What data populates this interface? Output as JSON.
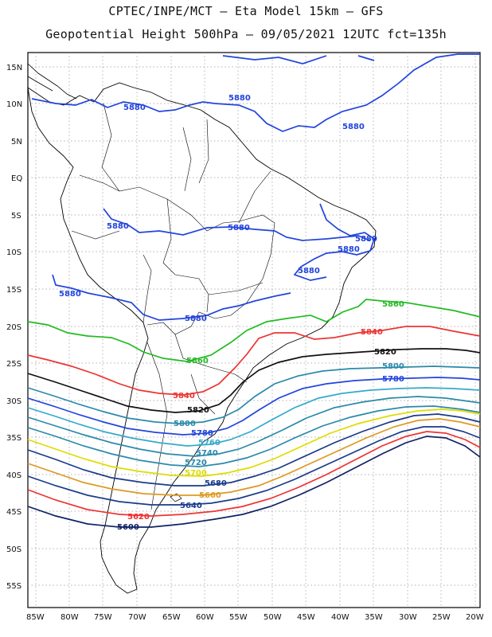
{
  "header": {
    "line1": "CPTEC/INPE/MCT –  Eta Model 15km – GFS",
    "line2": "Geopotential Height 500hPa – 09/05/2021 12UTC fct=135h"
  },
  "lat_labels": [
    "15N",
    "10N",
    "5N",
    "EQ",
    "5S",
    "10S",
    "15S",
    "20S",
    "25S",
    "30S",
    "35S",
    "40S",
    "45S",
    "50S",
    "55S"
  ],
  "lon_labels": [
    "85W",
    "80W",
    "75W",
    "70W",
    "65W",
    "60W",
    "55W",
    "50W",
    "45W",
    "40W",
    "35W",
    "30W",
    "25W",
    "20W"
  ],
  "contour_labels": [
    {
      "text": "5880",
      "color": "#2244dd"
    },
    {
      "text": "5880",
      "color": "#2244dd"
    },
    {
      "text": "5880",
      "color": "#2244dd"
    },
    {
      "text": "5880",
      "color": "#2244dd"
    },
    {
      "text": "5880",
      "color": "#2244dd"
    },
    {
      "text": "5880",
      "color": "#2244dd"
    },
    {
      "text": "5880",
      "color": "#2244dd"
    },
    {
      "text": "5880",
      "color": "#2244dd"
    },
    {
      "text": "5880",
      "color": "#2244dd"
    },
    {
      "text": "5880",
      "color": "#2244dd"
    },
    {
      "text": "5860",
      "color": "#22bb22"
    },
    {
      "text": "5860",
      "color": "#22bb22"
    },
    {
      "text": "5840",
      "color": "#ee3333"
    },
    {
      "text": "5840",
      "color": "#ee3333"
    },
    {
      "text": "5820",
      "color": "#111111"
    },
    {
      "text": "5820",
      "color": "#111111"
    },
    {
      "text": "5800",
      "color": "#2a8aaa"
    },
    {
      "text": "5800",
      "color": "#2a8aaa"
    },
    {
      "text": "5780",
      "color": "#2244dd"
    },
    {
      "text": "5780",
      "color": "#2244dd"
    },
    {
      "text": "5760",
      "color": "#33aacc"
    },
    {
      "text": "5740",
      "color": "#2a8aaa"
    },
    {
      "text": "5720",
      "color": "#2a8aaa"
    },
    {
      "text": "5700",
      "color": "#dddd00"
    },
    {
      "text": "5680",
      "color": "#1a3a8a"
    },
    {
      "text": "5660",
      "color": "#dd9922"
    },
    {
      "text": "5640",
      "color": "#1a3a8a"
    },
    {
      "text": "5620",
      "color": "#ee3333"
    },
    {
      "text": "5600",
      "color": "#112266"
    }
  ]
}
